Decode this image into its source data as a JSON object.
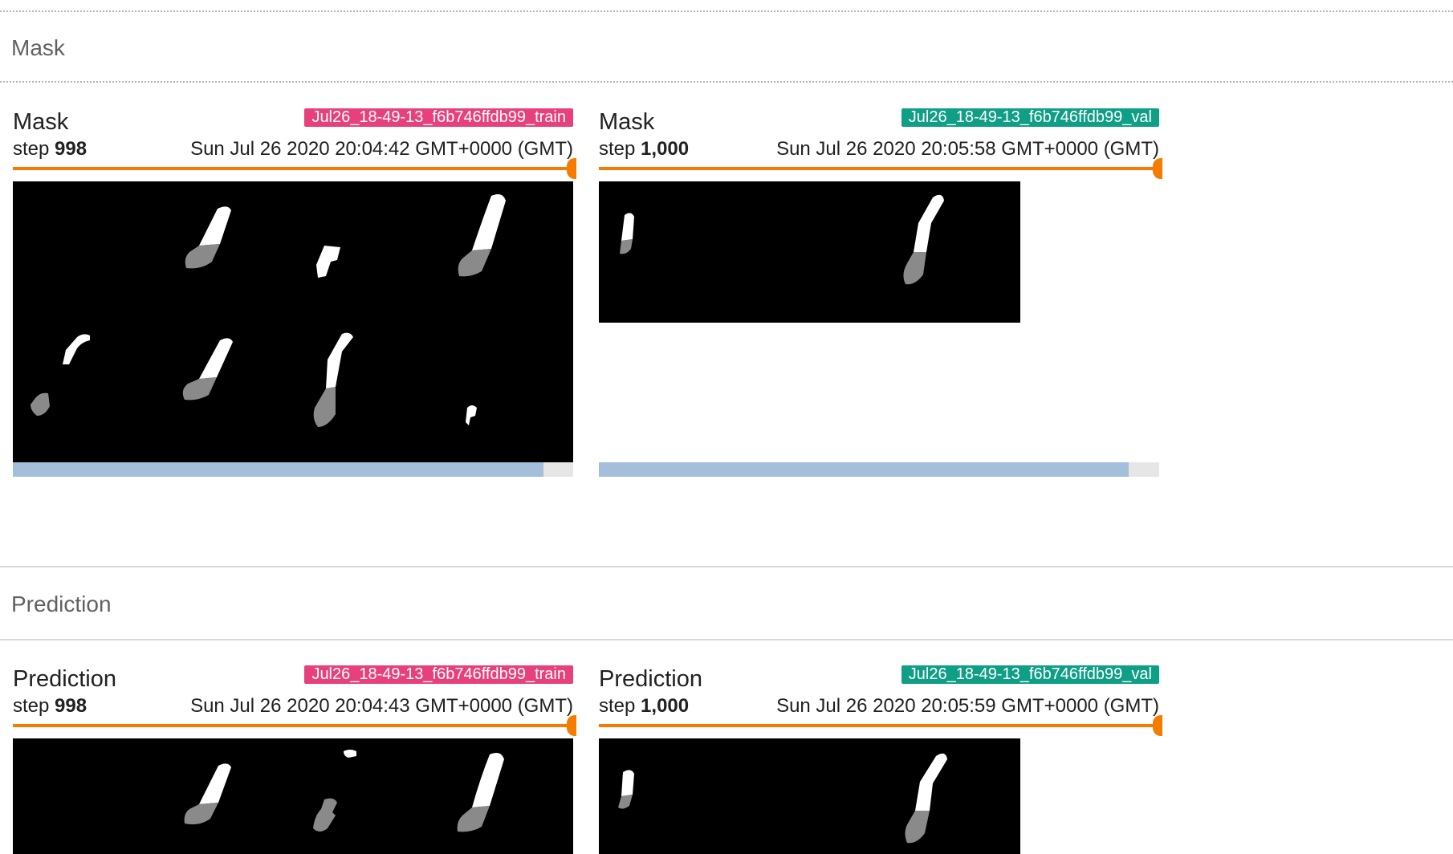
{
  "sections": [
    {
      "title": "Mask",
      "cards": [
        {
          "title": "Mask",
          "run": "Jul26_18-49-13_f6b746ffdb99_train",
          "run_color": "#e7407a",
          "step_prefix": "step",
          "step": "998",
          "timestamp": "Sun Jul 26 2020 20:04:42 GMT+0000 (GMT)",
          "scroll_fraction": 0.947
        },
        {
          "title": "Mask",
          "run": "Jul26_18-49-13_f6b746ffdb99_val",
          "run_color": "#0f9e86",
          "step_prefix": "step",
          "step": "1,000",
          "timestamp": "Sun Jul 26 2020 20:05:58 GMT+0000 (GMT)",
          "scroll_fraction": 0.946
        }
      ]
    },
    {
      "title": "Prediction",
      "cards": [
        {
          "title": "Prediction",
          "run": "Jul26_18-49-13_f6b746ffdb99_train",
          "run_color": "#e7407a",
          "step_prefix": "step",
          "step": "998",
          "timestamp": "Sun Jul 26 2020 20:04:43 GMT+0000 (GMT)"
        },
        {
          "title": "Prediction",
          "run": "Jul26_18-49-13_f6b746ffdb99_val",
          "run_color": "#0f9e86",
          "step_prefix": "step",
          "step": "1,000",
          "timestamp": "Sun Jul 26 2020 20:05:59 GMT+0000 (GMT)"
        }
      ]
    }
  ],
  "slider_color": "#f57c00",
  "scrollbar_color": "#a3bfd9"
}
